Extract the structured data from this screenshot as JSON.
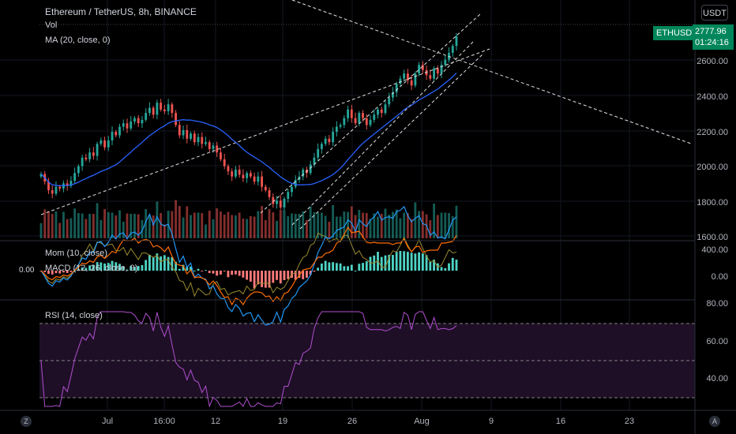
{
  "chart_data": {
    "type": "candlestick",
    "title": "Ethereum / TetherUS, 8h, BINANCE",
    "symbol": "ETHUSDT",
    "currency": "USDT",
    "last_price": "2777.96",
    "countdown": "01:24:16",
    "price_axis": [
      "2600.00",
      "2400.00",
      "2200.00",
      "2000.00",
      "1800.00",
      "1600.00"
    ],
    "price_range": [
      1600,
      2850
    ],
    "x_ticks": [
      "Jul",
      "16:00",
      "12",
      "19",
      "26",
      "Aug",
      "9",
      "16",
      "23"
    ],
    "close": [
      1975,
      1930,
      1880,
      1860,
      1900,
      1890,
      1920,
      1905,
      1935,
      1980,
      2020,
      2070,
      2060,
      2100,
      2080,
      2150,
      2170,
      2130,
      2170,
      2220,
      2200,
      2250,
      2270,
      2240,
      2280,
      2300,
      2270,
      2290,
      2330,
      2360,
      2320,
      2390,
      2350,
      2340,
      2380,
      2330,
      2260,
      2200,
      2230,
      2180,
      2210,
      2160,
      2190,
      2150,
      2160,
      2120,
      2140,
      2100,
      2060,
      2020,
      1990,
      1960,
      2000,
      1970,
      1950,
      1980,
      1960,
      1930,
      1960,
      1900,
      1880,
      1840,
      1800,
      1820,
      1780,
      1830,
      1870,
      1900,
      1940,
      1960,
      2000,
      1980,
      2030,
      2070,
      2120,
      2150,
      2180,
      2160,
      2220,
      2250,
      2260,
      2300,
      2350,
      2300,
      2270,
      2330,
      2300,
      2260,
      2290,
      2320,
      2350,
      2330,
      2380,
      2420,
      2450,
      2500,
      2530,
      2560,
      2520,
      2490,
      2560,
      2610,
      2580,
      2550,
      2530,
      2590,
      2560,
      2610,
      2640,
      2680,
      2720,
      2778
    ],
    "ma_label": "MA (20, close, 0)",
    "volume_label": "Vol",
    "mom_label": "Mom (10, close)",
    "macd_label": "MACD (12, 26, close, 9)",
    "macd_axis": [
      "400.00",
      "0.00"
    ],
    "macd_left_value": "0.00",
    "rsi_label": "RSI (14, close)",
    "rsi_axis": [
      "80.00",
      "60.00",
      "40.00"
    ],
    "rsi_levels": [
      70,
      50,
      30
    ]
  },
  "ui": {
    "currency_button": "USDT",
    "corner_left": "Z",
    "corner_right": "A"
  },
  "colors": {
    "up": "#26a69a",
    "down": "#ef5350",
    "ma": "#2962ff",
    "rsi": "#9c27b0",
    "background": "#000000"
  }
}
